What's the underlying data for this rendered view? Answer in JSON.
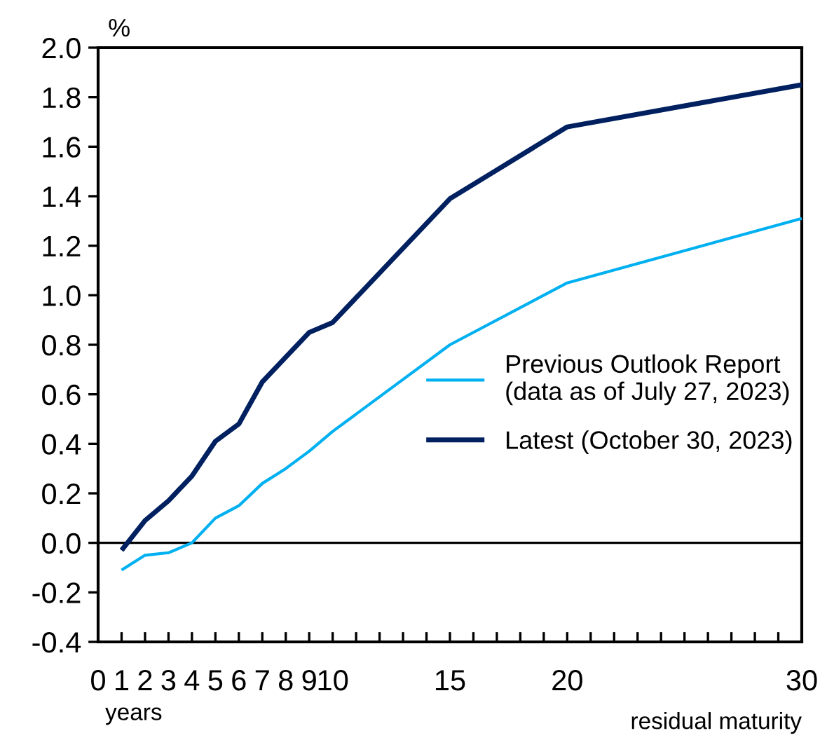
{
  "chart_data": {
    "type": "line",
    "ylabel": "%",
    "xlabel": "residual maturity",
    "annotations": [
      "years"
    ],
    "xlim": [
      0,
      30
    ],
    "ylim": [
      -0.4,
      2.0
    ],
    "xticks": [
      0,
      1,
      2,
      3,
      4,
      5,
      6,
      7,
      8,
      9,
      10,
      {
        "value": 11,
        "label": null
      },
      {
        "value": 12,
        "label": null
      },
      {
        "value": 13,
        "label": null
      },
      {
        "value": 14,
        "label": null
      },
      15,
      {
        "value": 16,
        "label": null
      },
      {
        "value": 17,
        "label": null
      },
      {
        "value": 18,
        "label": null
      },
      {
        "value": 19,
        "label": null
      },
      20,
      {
        "value": 21,
        "label": null
      },
      {
        "value": 22,
        "label": null
      },
      {
        "value": 23,
        "label": null
      },
      {
        "value": 24,
        "label": null
      },
      {
        "value": 25,
        "label": null
      },
      {
        "value": 26,
        "label": null
      },
      {
        "value": 27,
        "label": null
      },
      {
        "value": 28,
        "label": null
      },
      {
        "value": 29,
        "label": null
      },
      30
    ],
    "yticks": [
      {
        "value": -0.4,
        "label": "-0.4"
      },
      {
        "value": -0.2,
        "label": "-0.2"
      },
      {
        "value": 0,
        "label": "0.0"
      },
      {
        "value": 0.2,
        "label": "0.2"
      },
      {
        "value": 0.4,
        "label": "0.4"
      },
      {
        "value": 0.6,
        "label": "0.6"
      },
      {
        "value": 0.8,
        "label": "0.8"
      },
      {
        "value": 1.0,
        "label": "1.0"
      },
      {
        "value": 1.2,
        "label": "1.2"
      },
      {
        "value": 1.4,
        "label": "1.4"
      },
      {
        "value": 1.6,
        "label": "1.6"
      },
      {
        "value": 1.8,
        "label": "1.8"
      },
      {
        "value": 2.0,
        "label": "2.0"
      }
    ],
    "x": [
      1,
      2,
      3,
      4,
      5,
      6,
      7,
      8,
      9,
      10,
      15,
      20,
      30
    ],
    "series": [
      {
        "name": "Previous Outlook Report\n(data as of July 27, 2023)",
        "color": "#00b0f0",
        "values": [
          -0.11,
          -0.05,
          -0.04,
          0.0,
          0.1,
          0.15,
          0.24,
          0.3,
          0.37,
          0.45,
          0.8,
          1.05,
          1.31
        ]
      },
      {
        "name": "Latest (October 30, 2023)",
        "color": "#002060",
        "values": [
          -0.03,
          0.09,
          0.17,
          0.27,
          0.41,
          0.48,
          0.65,
          0.75,
          0.85,
          0.89,
          1.39,
          1.68,
          1.85
        ]
      }
    ],
    "ref_lines": [
      {
        "axis": "y",
        "value": 0,
        "color": "#000000"
      }
    ],
    "legend": "center right",
    "grid": false,
    "marker": "none",
    "line_style": "solid"
  }
}
